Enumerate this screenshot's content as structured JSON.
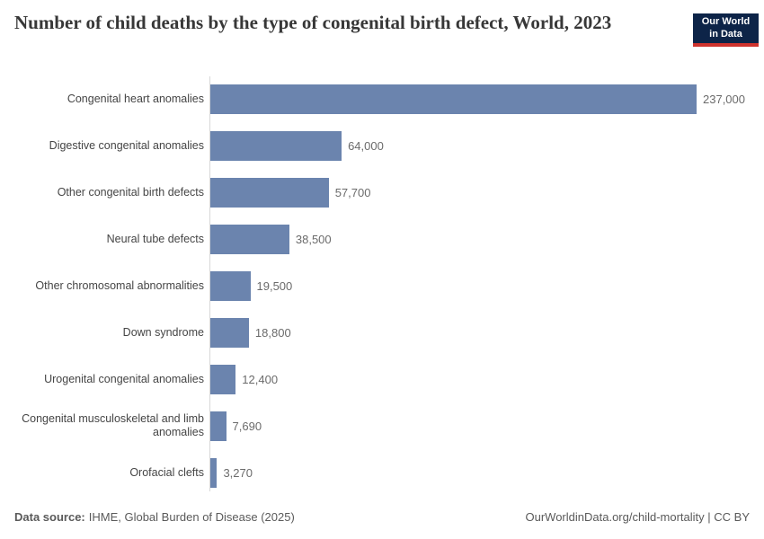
{
  "header": {
    "title": "Number of child deaths by the type of congenital birth defect, World, 2023",
    "logo": {
      "line1": "Our World",
      "line2": "in Data"
    }
  },
  "chart_data": {
    "type": "bar",
    "orientation": "horizontal",
    "title": "Number of child deaths by the type of congenital birth defect, World, 2023",
    "xlabel": "",
    "ylabel": "",
    "xlim": [
      0,
      237000
    ],
    "grid": false,
    "legend": "none",
    "categories": [
      "Congenital heart anomalies",
      "Digestive congenital anomalies",
      "Other congenital birth defects",
      "Neural tube defects",
      "Other chromosomal abnormalities",
      "Down syndrome",
      "Urogenital congenital anomalies",
      "Congenital musculoskeletal and limb\nanomalies",
      "Orofacial clefts"
    ],
    "values": [
      237000,
      64000,
      57700,
      38500,
      19500,
      18800,
      12400,
      7690,
      3270
    ],
    "value_labels": [
      "237,000",
      "64,000",
      "57,700",
      "38,500",
      "19,500",
      "18,800",
      "12,400",
      "7,690",
      "3,270"
    ]
  },
  "footer": {
    "source_label": "Data source:",
    "source_text": "IHME, Global Burden of Disease (2025)",
    "credit": "OurWorldinData.org/child-mortality | CC BY"
  },
  "colors": {
    "bar": "#6b84ae",
    "axis_line": "#d8d8d8",
    "title_text": "#373737",
    "label_text": "#454545",
    "value_text": "#6b6b6b",
    "footer_text": "#5a5a5a",
    "logo_bg": "#0d2448",
    "logo_red": "#ce332e"
  }
}
